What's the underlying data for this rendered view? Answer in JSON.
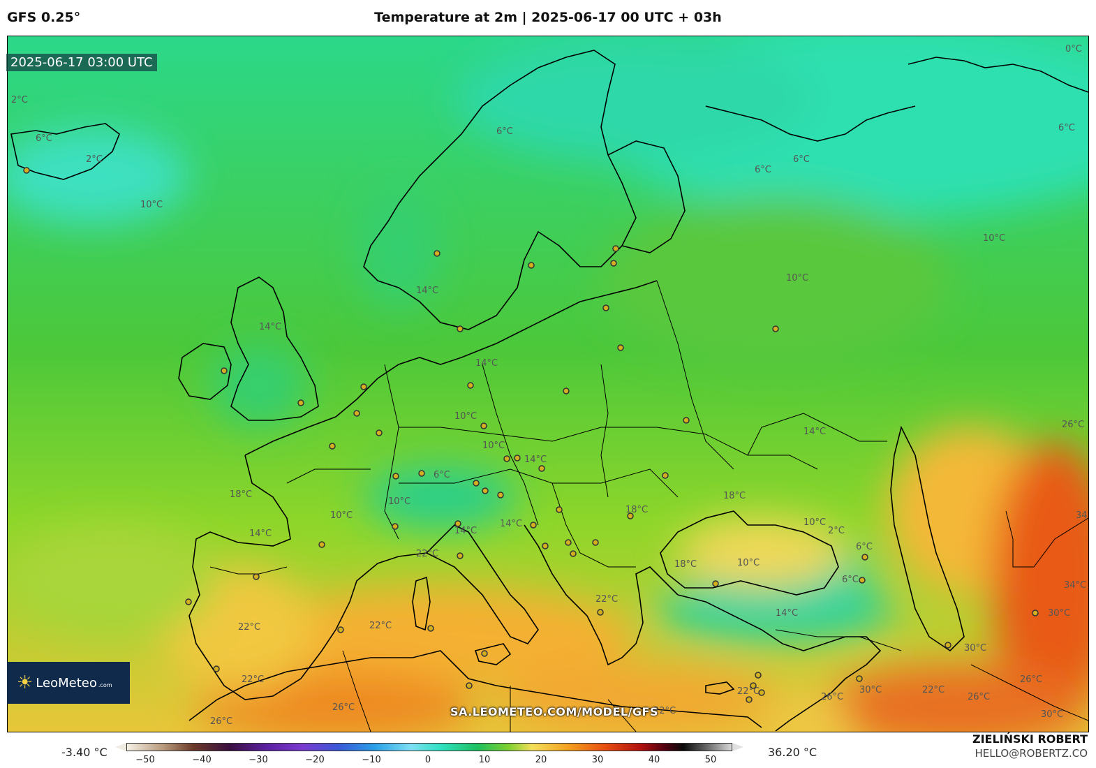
{
  "header": {
    "model": "GFS 0.25°",
    "title": "Temperature at 2m | 2025-06-17 00 UTC + 03h"
  },
  "map": {
    "timestamp": "2025-06-17 03:00 UTC",
    "site_url": "SA.LEOMETEO.COM/MODEL/GFS",
    "contour_labels": [
      "0°C",
      "2°C",
      "6°C",
      "2°C",
      "10°C",
      "6°C",
      "6°C",
      "6°C",
      "6°C",
      "10°C",
      "10°C",
      "14°C",
      "14°C",
      "14°C",
      "10°C",
      "14°C",
      "10°C",
      "14°C",
      "6°C",
      "10°C",
      "10°C",
      "18°C",
      "14°C",
      "14°C",
      "14°C",
      "18°C",
      "18°C",
      "18°C",
      "10°C",
      "2°C",
      "6°C",
      "6°C",
      "10°C",
      "14°C",
      "22°C",
      "22°C",
      "22°C",
      "22°C",
      "26°C",
      "26°C",
      "22°C",
      "22°C",
      "26°C",
      "26°C",
      "30°C",
      "30°C",
      "30°C",
      "30°C",
      "26°C",
      "34°C",
      "34°C",
      "22°C",
      "26°C",
      "22°C"
    ]
  },
  "logo": {
    "name": "LeoMeteo",
    "domain": ".com"
  },
  "colorbar": {
    "min_label": "-3.40 °C",
    "max_label": "36.20 °C",
    "ticks": [
      "−50",
      "−40",
      "−30",
      "−20",
      "−10",
      "0",
      "10",
      "20",
      "30",
      "40",
      "50"
    ]
  },
  "author": {
    "name": "ZIELIŃSKI ROBERT",
    "email": "HELLO@ROBERTZ.CO"
  }
}
